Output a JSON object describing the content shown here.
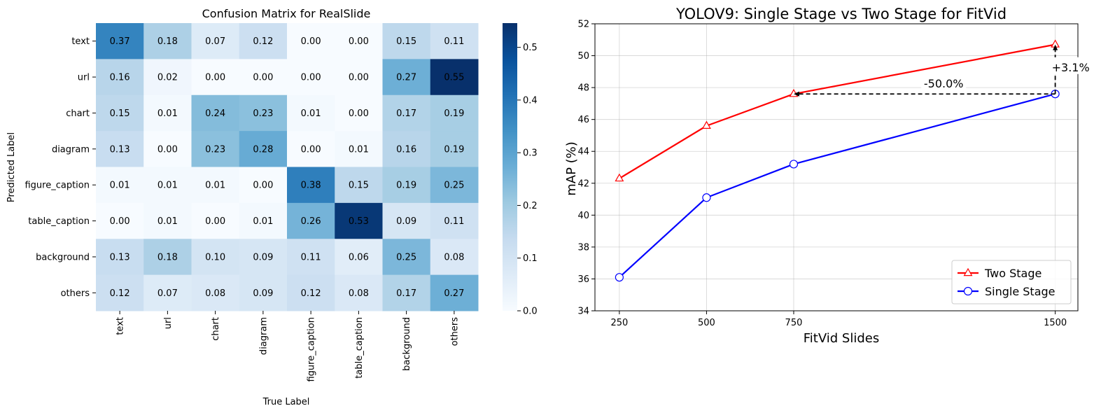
{
  "chart_data": [
    {
      "type": "heatmap",
      "title": "Confusion Matrix for RealSlide",
      "xlabel": "True Label",
      "ylabel": "Predicted Label",
      "x_categories": [
        "text",
        "url",
        "chart",
        "diagram",
        "figure_caption",
        "table_caption",
        "background",
        "others"
      ],
      "y_categories": [
        "text",
        "url",
        "chart",
        "diagram",
        "figure_caption",
        "table_caption",
        "background",
        "others"
      ],
      "values": [
        [
          0.37,
          0.18,
          0.07,
          0.12,
          0.0,
          0.0,
          0.15,
          0.11
        ],
        [
          0.16,
          0.02,
          0.0,
          0.0,
          0.0,
          0.0,
          0.27,
          0.55
        ],
        [
          0.15,
          0.01,
          0.24,
          0.23,
          0.01,
          0.0,
          0.17,
          0.19
        ],
        [
          0.13,
          0.0,
          0.23,
          0.28,
          0.0,
          0.01,
          0.16,
          0.19
        ],
        [
          0.01,
          0.01,
          0.01,
          0.0,
          0.38,
          0.15,
          0.19,
          0.25
        ],
        [
          0.0,
          0.01,
          0.0,
          0.01,
          0.26,
          0.53,
          0.09,
          0.11
        ],
        [
          0.13,
          0.18,
          0.1,
          0.09,
          0.11,
          0.06,
          0.25,
          0.08
        ],
        [
          0.12,
          0.07,
          0.08,
          0.09,
          0.12,
          0.08,
          0.17,
          0.27
        ]
      ],
      "value_labels": [
        [
          "0.37",
          "0.18",
          "0.07",
          "0.12",
          "0.00",
          "0.00",
          "0.15",
          "0.11"
        ],
        [
          "0.16",
          "0.02",
          "0.00",
          "0.00",
          "0.00",
          "0.00",
          "0.27",
          "0.55"
        ],
        [
          "0.15",
          "0.01",
          "0.24",
          "0.23",
          "0.01",
          "0.00",
          "0.17",
          "0.19"
        ],
        [
          "0.13",
          "0.00",
          "0.23",
          "0.28",
          "0.00",
          "0.01",
          "0.16",
          "0.19"
        ],
        [
          "0.01",
          "0.01",
          "0.01",
          "0.00",
          "0.38",
          "0.15",
          "0.19",
          "0.25"
        ],
        [
          "0.00",
          "0.01",
          "0.00",
          "0.01",
          "0.26",
          "0.53",
          "0.09",
          "0.11"
        ],
        [
          "0.13",
          "0.18",
          "0.10",
          "0.09",
          "0.11",
          "0.06",
          "0.25",
          "0.08"
        ],
        [
          "0.12",
          "0.07",
          "0.08",
          "0.09",
          "0.12",
          "0.08",
          "0.17",
          "0.27"
        ]
      ],
      "colorbar": {
        "range": [
          0,
          0.546
        ],
        "ticks": [
          0,
          0.1,
          0.2,
          0.3,
          0.4,
          0.5
        ],
        "tick_labels": [
          "0.0",
          "0.1",
          "0.2",
          "0.3",
          "0.4",
          "0.5"
        ],
        "colormap": "Blues",
        "colors": [
          "#f7fbff",
          "#deebf7",
          "#c6dbef",
          "#9ecae1",
          "#6baed6",
          "#4292c6",
          "#2171b5",
          "#08519c",
          "#08306b"
        ]
      }
    },
    {
      "type": "line",
      "title": "YOLOV9: Single Stage vs Two Stage for FitVid",
      "xlabel": "FitVid Slides",
      "ylabel": "mAP (%)",
      "x": [
        250,
        500,
        750,
        1500
      ],
      "x_tick_labels": [
        "250",
        "500",
        "750",
        "1500"
      ],
      "xlim": [
        180,
        1565
      ],
      "ylim": [
        34,
        52
      ],
      "y_ticks": [
        34,
        36,
        38,
        40,
        42,
        44,
        46,
        48,
        50,
        52
      ],
      "y_tick_labels": [
        "34",
        "36",
        "38",
        "40",
        "42",
        "44",
        "46",
        "48",
        "50",
        "52"
      ],
      "grid": true,
      "legend_position": "lower-right",
      "series": [
        {
          "name": "Two Stage",
          "values": [
            42.3,
            45.6,
            47.6,
            50.7
          ],
          "color": "#ff0000",
          "marker": "triangle"
        },
        {
          "name": "Single Stage",
          "values": [
            36.1,
            41.1,
            43.2,
            47.6
          ],
          "color": "#0000ff",
          "marker": "circle"
        }
      ],
      "annotations": [
        {
          "text": "-50.0%",
          "from": {
            "x": 1500,
            "y": 47.6
          },
          "to": {
            "x": 750,
            "y": 47.6
          },
          "label_at": {
            "x": 1180,
            "y": 47.6
          }
        },
        {
          "text": "+3.1%",
          "from": {
            "x": 1500,
            "y": 47.6
          },
          "to": {
            "x": 1500,
            "y": 50.7
          },
          "label_at": {
            "x": 1500,
            "y": 49.2
          }
        }
      ]
    }
  ]
}
